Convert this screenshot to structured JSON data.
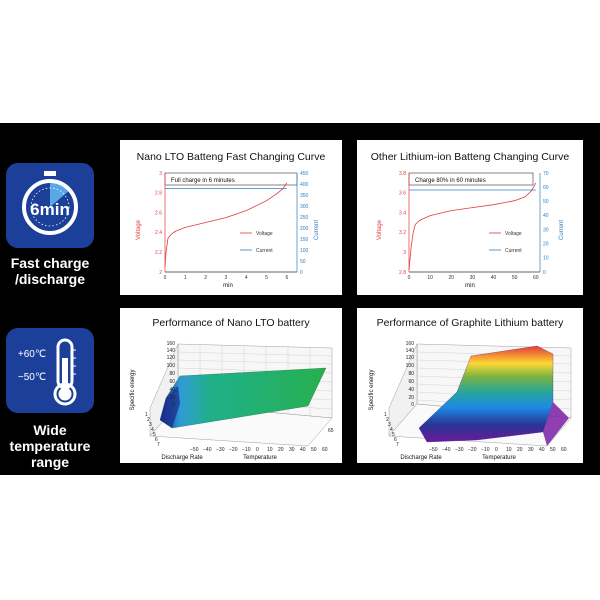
{
  "colors": {
    "band": "#000000",
    "icon_bg": "#1c3f99",
    "voltage": "#e23b3b",
    "current": "#2f7fc1"
  },
  "left": {
    "fast": {
      "icon": "stopwatch-icon",
      "icon_text": "6min",
      "caption_line1": "Fast charge",
      "caption_line2": "/discharge"
    },
    "temp": {
      "icon": "thermometer-icon",
      "hot": "+60℃",
      "cold": "−50℃",
      "caption_line1": "Wide",
      "caption_line2": "temperature",
      "caption_line3": "range"
    }
  },
  "chart_data": [
    {
      "type": "line",
      "title": "Nano LTO Batteng Fast Changing Curve",
      "annotation": "Full charge in 6 minutes",
      "xlabel": "min",
      "ylabel": "Voltage",
      "y2label": "Current",
      "x_ticks": [
        "0",
        "1",
        "2",
        "3",
        "4",
        "5",
        "6"
      ],
      "y_ticks": [
        "2",
        "2.2",
        "2.4",
        "2.6",
        "2.8",
        "3"
      ],
      "y2_ticks": [
        "0",
        "50",
        "100",
        "150",
        "200",
        "250",
        "300",
        "350",
        "400",
        "450"
      ],
      "xlim": [
        0,
        6.5
      ],
      "ylim": [
        2,
        3
      ],
      "y2lim": [
        0,
        450
      ],
      "legend": [
        "Voltage",
        "Current"
      ],
      "series": [
        {
          "name": "Voltage",
          "axis": "left",
          "x": [
            0,
            0.05,
            0.15,
            0.3,
            0.5,
            1,
            2,
            3,
            4,
            5,
            5.5,
            5.8,
            6
          ],
          "values": [
            2.05,
            2.2,
            2.34,
            2.38,
            2.41,
            2.45,
            2.5,
            2.55,
            2.62,
            2.72,
            2.79,
            2.84,
            2.9
          ]
        },
        {
          "name": "Current",
          "axis": "right",
          "x": [
            0,
            6
          ],
          "values": [
            380,
            380
          ]
        }
      ]
    },
    {
      "type": "line",
      "title": "Other Lithium-ion Batteng Changing Curve",
      "annotation": "Charge 80% in 60 minutes",
      "xlabel": "min",
      "ylabel": "Voltage",
      "y2label": "Current",
      "x_ticks": [
        "0",
        "10",
        "20",
        "30",
        "40",
        "50",
        "60"
      ],
      "y_ticks": [
        "2.8",
        "3",
        "3.2",
        "3.4",
        "3.6",
        "3.8"
      ],
      "y2_ticks": [
        "0",
        "10",
        "20",
        "30",
        "40",
        "50",
        "60",
        "70"
      ],
      "xlim": [
        0,
        62
      ],
      "ylim": [
        2.8,
        3.8
      ],
      "y2lim": [
        0,
        70
      ],
      "legend": [
        "Voltage",
        "Current"
      ],
      "series": [
        {
          "name": "Voltage",
          "axis": "left",
          "x": [
            0,
            1,
            2,
            3,
            5,
            10,
            20,
            30,
            40,
            50,
            55,
            58,
            60
          ],
          "values": [
            2.82,
            3.05,
            3.2,
            3.28,
            3.32,
            3.37,
            3.42,
            3.45,
            3.48,
            3.52,
            3.56,
            3.62,
            3.7
          ]
        },
        {
          "name": "Current",
          "axis": "right",
          "x": [
            0,
            60
          ],
          "values": [
            58,
            58
          ]
        }
      ]
    },
    {
      "type": "surface",
      "title": "Performance of Nano LTO battery",
      "zlabel": "Specific energy",
      "xlabel": "Discharge Rate",
      "ylabel": "Temperature",
      "z_ticks": [
        "0",
        "20",
        "40",
        "60",
        "80",
        "100",
        "120",
        "140",
        "160"
      ],
      "rate_ticks": [
        "1",
        "2",
        "3",
        "4",
        "5",
        "6",
        "7"
      ],
      "temp_ticks": [
        "−50",
        "−40",
        "−30",
        "−20",
        "−10",
        "0",
        "10",
        "20",
        "30",
        "40",
        "50",
        "60"
      ],
      "side_label": "65"
    },
    {
      "type": "surface",
      "title": "Performance of Graphite Lithium battery",
      "zlabel": "Specific energy",
      "xlabel": "Discharge Rate",
      "ylabel": "Temperature",
      "z_ticks": [
        "0",
        "20",
        "40",
        "60",
        "80",
        "100",
        "120",
        "140",
        "160"
      ],
      "rate_ticks": [
        "1",
        "2",
        "3",
        "4",
        "5",
        "6",
        "7"
      ],
      "temp_ticks": [
        "−50",
        "−40",
        "−30",
        "−20",
        "−10",
        "0",
        "10",
        "20",
        "30",
        "40",
        "50",
        "60"
      ]
    }
  ]
}
